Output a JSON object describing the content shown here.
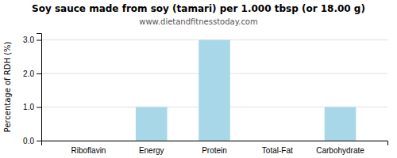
{
  "chart_data": {
    "type": "bar",
    "title": "Soy sauce made from soy (tamari) per 1.000 tbsp (or 18.00 g)",
    "subtitle": "www.dietandfitnesstoday.com",
    "ylabel": "Percentage of RDH (%)",
    "categories": [
      "Riboflavin",
      "Energy",
      "Protein",
      "Total-Fat",
      "Carbohydrate"
    ],
    "values": [
      0.0,
      1.0,
      3.0,
      0.0,
      1.0
    ],
    "color": "#a8d8e8",
    "ylim": [
      0,
      3.2
    ],
    "yticks": [
      {
        "value": 0.0,
        "label": "0.0"
      },
      {
        "value": 1.0,
        "label": "1.0"
      },
      {
        "value": 2.0,
        "label": "2.0"
      },
      {
        "value": 3.0,
        "label": "3.0"
      }
    ],
    "grid": true
  }
}
